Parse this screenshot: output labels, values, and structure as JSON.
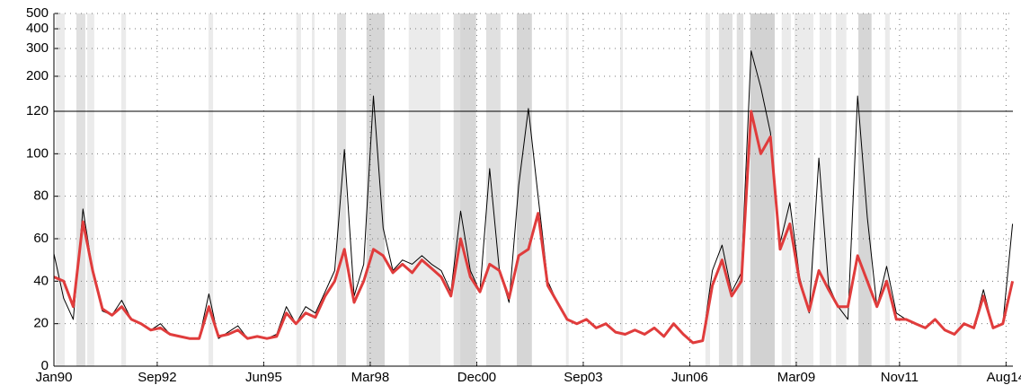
{
  "chart_data": {
    "type": "line",
    "xlim": [
      1990,
      2014.76
    ],
    "xticks": [
      {
        "value": 1990,
        "label": "Jan90"
      },
      {
        "value": 1992.667,
        "label": "Sep92"
      },
      {
        "value": 1995.417,
        "label": "Jun95"
      },
      {
        "value": 1998.167,
        "label": "Mar98"
      },
      {
        "value": 2000.917,
        "label": "Dec00"
      },
      {
        "value": 2003.667,
        "label": "Sep03"
      },
      {
        "value": 2006.417,
        "label": "Jun06"
      },
      {
        "value": 2009.167,
        "label": "Mar09"
      },
      {
        "value": 2011.833,
        "label": "Nov11"
      },
      {
        "value": 2014.583,
        "label": "Aug14"
      }
    ],
    "ylim": [
      0,
      500
    ],
    "yticks": [
      0,
      20,
      40,
      60,
      80,
      100,
      120,
      200,
      300,
      400,
      500
    ],
    "log_above": 120,
    "grid": true,
    "x": [
      1990,
      1990.25,
      1990.5,
      1990.75,
      1991,
      1991.25,
      1991.5,
      1991.75,
      1992,
      1992.25,
      1992.5,
      1992.75,
      1993,
      1993.25,
      1993.5,
      1993.75,
      1994,
      1994.25,
      1994.5,
      1994.75,
      1995,
      1995.25,
      1995.5,
      1995.75,
      1996,
      1996.25,
      1996.5,
      1996.75,
      1997,
      1997.25,
      1997.5,
      1997.75,
      1998,
      1998.25,
      1998.5,
      1998.75,
      1999,
      1999.25,
      1999.5,
      1999.75,
      2000,
      2000.25,
      2000.5,
      2000.75,
      2001,
      2001.25,
      2001.5,
      2001.75,
      2002,
      2002.25,
      2002.5,
      2002.75,
      2003,
      2003.25,
      2003.5,
      2003.75,
      2004,
      2004.25,
      2004.5,
      2004.75,
      2005,
      2005.25,
      2005.5,
      2005.75,
      2006,
      2006.25,
      2006.5,
      2006.75,
      2007,
      2007.25,
      2007.5,
      2007.75,
      2008,
      2008.25,
      2008.5,
      2008.75,
      2009,
      2009.25,
      2009.5,
      2009.75,
      2010,
      2010.25,
      2010.5,
      2010.75,
      2011,
      2011.25,
      2011.5,
      2011.75,
      2012,
      2012.25,
      2012.5,
      2012.75,
      2013,
      2013.25,
      2013.5,
      2013.75,
      2014,
      2014.25,
      2014.5,
      2014.75
    ],
    "series": [
      {
        "color": "#000000",
        "width": 1,
        "values": [
          53,
          32,
          22,
          74,
          45,
          26,
          24,
          31,
          22,
          20,
          17,
          20,
          15,
          14,
          13,
          13,
          34,
          13,
          16,
          19,
          13,
          14,
          13,
          15,
          28,
          20,
          28,
          25,
          35,
          45,
          102,
          33,
          48,
          150,
          65,
          45,
          50,
          48,
          52,
          48,
          45,
          35,
          73,
          45,
          35,
          93,
          45,
          30,
          85,
          125,
          80,
          40,
          30,
          22,
          20,
          22,
          18,
          20,
          16,
          15,
          17,
          15,
          18,
          14,
          20,
          15,
          11,
          12,
          45,
          57,
          35,
          44,
          290,
          170,
          110,
          58,
          77,
          42,
          25,
          98,
          38,
          28,
          22,
          150,
          70,
          28,
          47,
          25,
          22,
          20,
          18,
          22,
          17,
          15,
          20,
          18,
          36,
          18,
          20,
          67
        ]
      },
      {
        "color": "#e03c3c",
        "width": 3,
        "values": [
          42,
          40,
          28,
          68,
          45,
          27,
          24,
          28,
          22,
          20,
          17,
          18,
          15,
          14,
          13,
          13,
          28,
          14,
          15,
          17,
          13,
          14,
          13,
          14,
          25,
          20,
          25,
          23,
          33,
          40,
          55,
          30,
          40,
          55,
          52,
          44,
          48,
          44,
          50,
          46,
          42,
          33,
          60,
          42,
          35,
          48,
          45,
          32,
          52,
          55,
          72,
          38,
          30,
          22,
          20,
          22,
          18,
          20,
          16,
          15,
          17,
          15,
          18,
          14,
          20,
          15,
          11,
          12,
          38,
          50,
          33,
          40,
          120,
          100,
          108,
          55,
          67,
          40,
          26,
          45,
          36,
          28,
          28,
          52,
          40,
          28,
          40,
          22,
          22,
          20,
          18,
          22,
          17,
          15,
          20,
          18,
          33,
          18,
          20,
          40
        ]
      }
    ],
    "shaded_periods": [
      {
        "start": 1990.05,
        "end": 1990.28,
        "color": "#ebebeb"
      },
      {
        "start": 1990.58,
        "end": 1990.81,
        "color": "#e0e0e0"
      },
      {
        "start": 1990.86,
        "end": 1991.04,
        "color": "#ebebeb"
      },
      {
        "start": 1991.74,
        "end": 1991.86,
        "color": "#ebebeb"
      },
      {
        "start": 1993.99,
        "end": 1994.11,
        "color": "#ebebeb"
      },
      {
        "start": 1996.26,
        "end": 1996.38,
        "color": "#ebebeb"
      },
      {
        "start": 1996.66,
        "end": 1996.73,
        "color": "#ebebeb"
      },
      {
        "start": 1997.31,
        "end": 1997.54,
        "color": "#e0e0e0"
      },
      {
        "start": 1998.07,
        "end": 1998.54,
        "color": "#d6d6d6"
      },
      {
        "start": 1999.16,
        "end": 1999.98,
        "color": "#ebebeb"
      },
      {
        "start": 2000.32,
        "end": 2000.49,
        "color": "#e0e0e0"
      },
      {
        "start": 2000.49,
        "end": 2000.9,
        "color": "#d6d6d6"
      },
      {
        "start": 2001.16,
        "end": 2001.53,
        "color": "#e0e0e0"
      },
      {
        "start": 2001.95,
        "end": 2002.34,
        "color": "#d6d6d6"
      },
      {
        "start": 2003.22,
        "end": 2003.29,
        "color": "#ebebeb"
      },
      {
        "start": 2004.62,
        "end": 2004.69,
        "color": "#ebebeb"
      },
      {
        "start": 2006.82,
        "end": 2006.94,
        "color": "#ebebeb"
      },
      {
        "start": 2007.17,
        "end": 2007.52,
        "color": "#e0e0e0"
      },
      {
        "start": 2007.63,
        "end": 2007.8,
        "color": "#e0e0e0"
      },
      {
        "start": 2007.98,
        "end": 2008.61,
        "color": "#d2d2d2"
      },
      {
        "start": 2008.79,
        "end": 2009.03,
        "color": "#ebebeb"
      },
      {
        "start": 2009.12,
        "end": 2009.61,
        "color": "#ebebeb"
      },
      {
        "start": 2009.77,
        "end": 2010.07,
        "color": "#ebebeb"
      },
      {
        "start": 2010.19,
        "end": 2010.46,
        "color": "#ebebeb"
      },
      {
        "start": 2010.77,
        "end": 2011.11,
        "color": "#d6d6d6"
      },
      {
        "start": 2011.46,
        "end": 2011.58,
        "color": "#ebebeb"
      },
      {
        "start": 2013.32,
        "end": 2013.43,
        "color": "#ebebeb"
      }
    ]
  }
}
